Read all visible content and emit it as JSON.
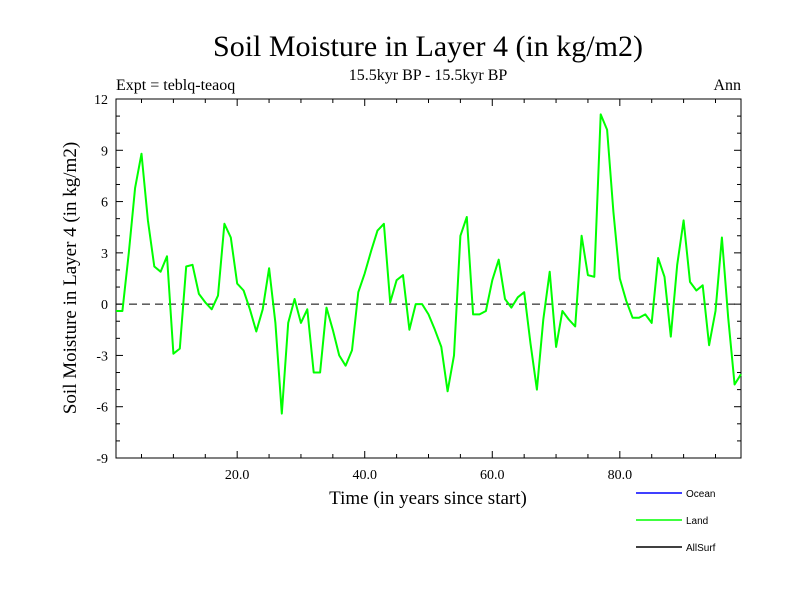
{
  "chart_data": {
    "type": "line",
    "title": "Soil Moisture in Layer 4 (in kg/m2)",
    "subtitle": "15.5kyr BP - 15.5kyr BP",
    "expt_label": "Expt = teblq-teaoq",
    "season_label": "Ann",
    "xlabel": "Time (in years since start)",
    "ylabel": "Soil Moisture in Layer 4 (in kg/m2)",
    "xlim": [
      1,
      99
    ],
    "ylim": [
      -9,
      12
    ],
    "x_ticks": [
      20,
      40,
      60,
      80
    ],
    "x_tick_labels": [
      "20.0",
      "40.0",
      "60.0",
      "80.0"
    ],
    "y_ticks": [
      -9,
      -6,
      -3,
      0,
      3,
      6,
      9,
      12
    ],
    "y_tick_labels": [
      "-9",
      "-6",
      "-3",
      "0",
      "3",
      "6",
      "9",
      "12"
    ],
    "zero_line": true,
    "legend_position": "bottom-right",
    "series": [
      {
        "name": "Ocean",
        "color": "#0000ff",
        "values": []
      },
      {
        "name": "Land",
        "color": "#00ff00",
        "x": [
          1,
          2,
          3,
          4,
          5,
          6,
          7,
          8,
          9,
          10,
          11,
          12,
          13,
          14,
          15,
          16,
          17,
          18,
          19,
          20,
          21,
          22,
          23,
          24,
          25,
          26,
          27,
          28,
          29,
          30,
          31,
          32,
          33,
          34,
          35,
          36,
          37,
          38,
          39,
          40,
          41,
          42,
          43,
          44,
          45,
          46,
          47,
          48,
          49,
          50,
          51,
          52,
          53,
          54,
          55,
          56,
          57,
          58,
          59,
          60,
          61,
          62,
          63,
          64,
          65,
          66,
          67,
          68,
          69,
          70,
          71,
          72,
          73,
          74,
          75,
          76,
          77,
          78,
          79,
          80,
          81,
          82,
          83,
          84,
          85,
          86,
          87,
          88,
          89,
          90,
          91,
          92,
          93,
          94,
          95,
          96,
          97,
          98,
          99
        ],
        "values": [
          -0.4,
          -0.4,
          3,
          6.8,
          8.8,
          4.9,
          2.2,
          1.9,
          2.8,
          -2.9,
          -2.6,
          2.2,
          2.3,
          0.6,
          0.1,
          -0.3,
          0.5,
          4.7,
          3.9,
          1.2,
          0.8,
          -0.3,
          -1.6,
          -0.3,
          2.1,
          -1.1,
          -6.4,
          -1.1,
          0.3,
          -1.1,
          -0.3,
          -4,
          -4,
          -0.2,
          -1.5,
          -3,
          -3.6,
          -2.7,
          0.7,
          1.8,
          3.1,
          4.3,
          4.7,
          0.1,
          1.4,
          1.7,
          -1.5,
          0,
          0,
          -0.6,
          -1.5,
          -2.5,
          -5.1,
          -3,
          4,
          5.1,
          -0.6,
          -0.6,
          -0.4,
          1.4,
          2.6,
          0.3,
          -0.2,
          0.4,
          0.7,
          -2.3,
          -5,
          -0.9,
          1.9,
          -2.5,
          -0.4,
          -0.9,
          -1.3,
          4,
          1.7,
          1.6,
          11.1,
          10.2,
          5.4,
          1.5,
          0.2,
          -0.8,
          -0.8,
          -0.6,
          -1.1,
          2.7,
          1.6,
          -1.9,
          2.3,
          4.9,
          1.3,
          0.8,
          1.1,
          -2.4,
          -0.4,
          3.9,
          -0.8,
          -4.7,
          -4.1
        ]
      },
      {
        "name": "AllSurf",
        "color": "#000000",
        "values": []
      }
    ]
  }
}
